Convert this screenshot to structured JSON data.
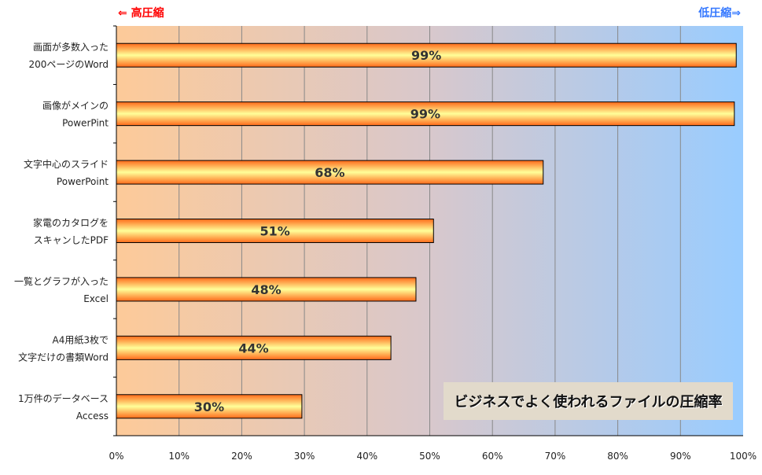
{
  "chart_data": {
    "type": "bar",
    "orientation": "horizontal",
    "title": "ビジネスでよく使われるファイルの圧縮率",
    "left_annotation": "⇐ 高圧縮",
    "right_annotation": "低圧縮⇒",
    "categories": [
      [
        "画面が多数入った",
        "200ページのWord"
      ],
      [
        "画像がメインの",
        "PowerPint"
      ],
      [
        "文字中心のスライド",
        "PowerPoint"
      ],
      [
        "家電のカタログを",
        "スキャンしたPDF"
      ],
      [
        "一覧とグラフが入った",
        "Excel"
      ],
      [
        "A4用紙3枚で",
        "文字だけの書類Word"
      ],
      [
        "1万件のデータベース",
        "Access"
      ]
    ],
    "values": [
      98.9,
      98.6,
      68.1,
      50.6,
      47.8,
      43.8,
      29.6
    ],
    "data_labels": [
      "99%",
      "99%",
      "68%",
      "51%",
      "48%",
      "44%",
      "30%"
    ],
    "xlim": [
      0,
      100
    ],
    "xticks": [
      0,
      10,
      20,
      30,
      40,
      50,
      60,
      70,
      80,
      90,
      100
    ],
    "xtick_labels": [
      "0%",
      "10%",
      "20%",
      "30%",
      "40%",
      "50%",
      "60%",
      "70%",
      "80%",
      "90%",
      "100%"
    ],
    "grid": "vertical",
    "colors": {
      "bg_left": "#fdca99",
      "bg_right": "#99ccff",
      "bar_edge": "#ff6a1a",
      "bar_center": "#ffff99",
      "high": "#ff0000",
      "low": "#3377ff"
    }
  }
}
